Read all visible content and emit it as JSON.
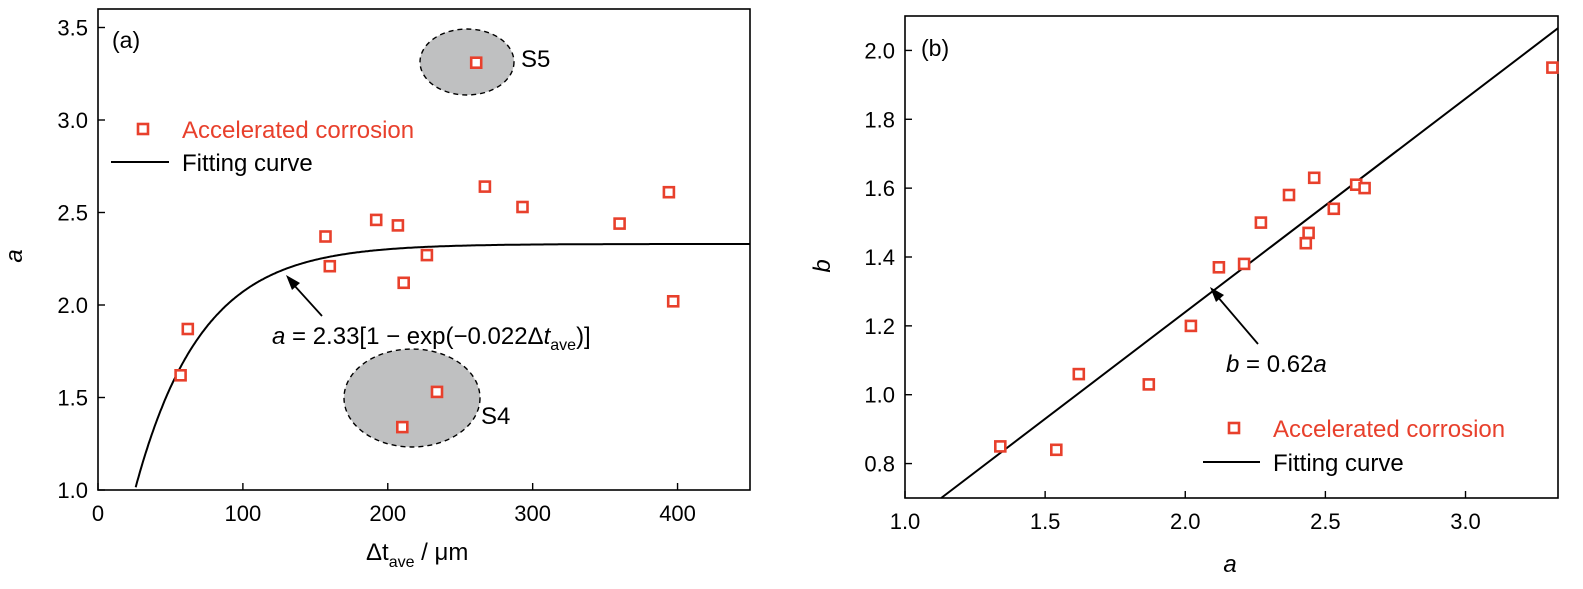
{
  "chart_data": [
    {
      "panel": "(a)",
      "type": "scatter",
      "xlabel": "Δt",
      "xlabel_sub": "ave",
      "xlabel_unit": " / μm",
      "ylabel": "a",
      "xlim": [
        0,
        450
      ],
      "ylim": [
        1.0,
        3.6
      ],
      "xticks": [
        0,
        100,
        200,
        300,
        400
      ],
      "yticks": [
        1.0,
        1.5,
        2.0,
        2.5,
        3.0,
        3.5
      ],
      "series": [
        {
          "name": "Accelerated corrosion",
          "color": "#e8402c",
          "points": [
            [
              57,
              1.62
            ],
            [
              62,
              1.87
            ],
            [
              157,
              2.37
            ],
            [
              160,
              2.21
            ],
            [
              192,
              2.46
            ],
            [
              207,
              2.43
            ],
            [
              211,
              2.12
            ],
            [
              227,
              2.27
            ],
            [
              267,
              2.64
            ],
            [
              293,
              2.53
            ],
            [
              360,
              2.44
            ],
            [
              394,
              2.61
            ],
            [
              397,
              2.02
            ],
            [
              261,
              3.31
            ],
            [
              210,
              1.34
            ],
            [
              234,
              1.53
            ]
          ]
        }
      ],
      "fit": {
        "name": "Fitting curve",
        "A": 2.33,
        "k": 0.022
      },
      "equation": {
        "var": "a",
        "body": " = 2.33[1 − exp(−0.022Δ",
        "t": "t",
        "sub": "ave",
        "close": ")]"
      },
      "annotations": {
        "s5": "S5",
        "s4": "S4"
      },
      "legend": {
        "points": "Accelerated corrosion",
        "line": "Fitting curve"
      }
    },
    {
      "panel": "(b)",
      "type": "scatter",
      "xlabel": "a",
      "ylabel": "b",
      "xlim": [
        1.0,
        3.33
      ],
      "ylim": [
        0.7,
        2.1
      ],
      "xticks": [
        1.0,
        1.5,
        2.0,
        2.5,
        3.0
      ],
      "yticks": [
        0.8,
        1.0,
        1.2,
        1.4,
        1.6,
        1.8,
        2.0
      ],
      "series": [
        {
          "name": "Accelerated corrosion",
          "color": "#e8402c",
          "points": [
            [
              1.34,
              0.85
            ],
            [
              1.54,
              0.84
            ],
            [
              1.62,
              1.06
            ],
            [
              1.87,
              1.03
            ],
            [
              2.02,
              1.2
            ],
            [
              2.12,
              1.37
            ],
            [
              2.21,
              1.38
            ],
            [
              2.27,
              1.5
            ],
            [
              2.37,
              1.58
            ],
            [
              2.43,
              1.44
            ],
            [
              2.44,
              1.47
            ],
            [
              2.46,
              1.63
            ],
            [
              2.53,
              1.54
            ],
            [
              2.61,
              1.61
            ],
            [
              2.64,
              1.6
            ],
            [
              3.31,
              1.95
            ]
          ]
        }
      ],
      "fit": {
        "name": "Fitting curve",
        "slope": 0.62
      },
      "equation": {
        "var": "b",
        "body": " = 0.62",
        "var2": "a"
      },
      "legend": {
        "points": "Accelerated corrosion",
        "line": "Fitting curve"
      }
    }
  ]
}
